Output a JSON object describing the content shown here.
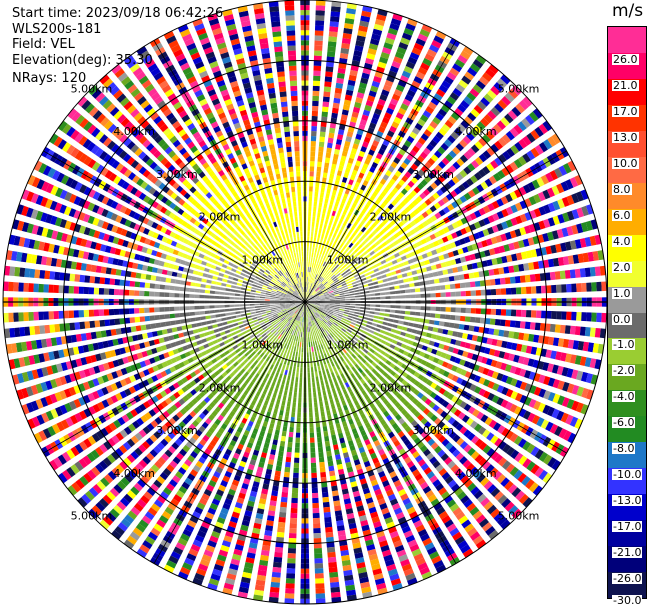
{
  "info": {
    "start_time": "Start time: 2023/09/18 06:42:26",
    "instrument": "WLS200s-181",
    "field": "Field: VEL",
    "elevation": "Elevation(deg): 35.30",
    "nrays": "NRays: 120"
  },
  "colorbar": {
    "title": "m/s",
    "ticks": [
      "26.0",
      "21.0",
      "17.0",
      "13.0",
      "10.0",
      "8.0",
      "6.0",
      "4.0",
      "2.0",
      "1.0",
      "0.0",
      "-1.0",
      "-2.0",
      "-4.0",
      "-6.0",
      "-8.0",
      "-10.0",
      "-13.0",
      "-17.0",
      "-21.0",
      "-26.0",
      "-30.0"
    ],
    "colors": [
      "#ff2d96",
      "#ff0066",
      "#ff0000",
      "#ff3300",
      "#ff5030",
      "#ff6a44",
      "#ff8a2a",
      "#ffad00",
      "#ffff00",
      "#f1ff2f",
      "#9a9a9a",
      "#6b6b6b",
      "#9acd32",
      "#6aa820",
      "#2f8f1f",
      "#228b22",
      "#1e78c8",
      "#3333ff",
      "#0000cc",
      "#0000a0",
      "#00007a",
      "#0f1450"
    ]
  },
  "chart_data": {
    "type": "ppi",
    "field": "VEL",
    "units": "m/s",
    "nrays": 120,
    "range_rings_km": [
      1.0,
      2.0,
      3.0,
      4.0,
      5.0
    ],
    "ring_labels": [
      "1.00km",
      "2.00km",
      "3.00km",
      "4.00km",
      "5.00km"
    ],
    "spoke_angles_deg": [
      0,
      30,
      60,
      90,
      120,
      150
    ],
    "velocity_bounds": [
      -30,
      -26,
      -21,
      -17,
      -13,
      -10,
      -8,
      -6,
      -4,
      -2,
      -1,
      0,
      1,
      2,
      4,
      6,
      8,
      10,
      13,
      17,
      21,
      26,
      30
    ],
    "max_range_km": 5.0,
    "pattern": "positive velocities toward north (upper half, yellow-orange-red), negative toward south (lower half, green-blue), noise beyond about 2.5 km"
  }
}
